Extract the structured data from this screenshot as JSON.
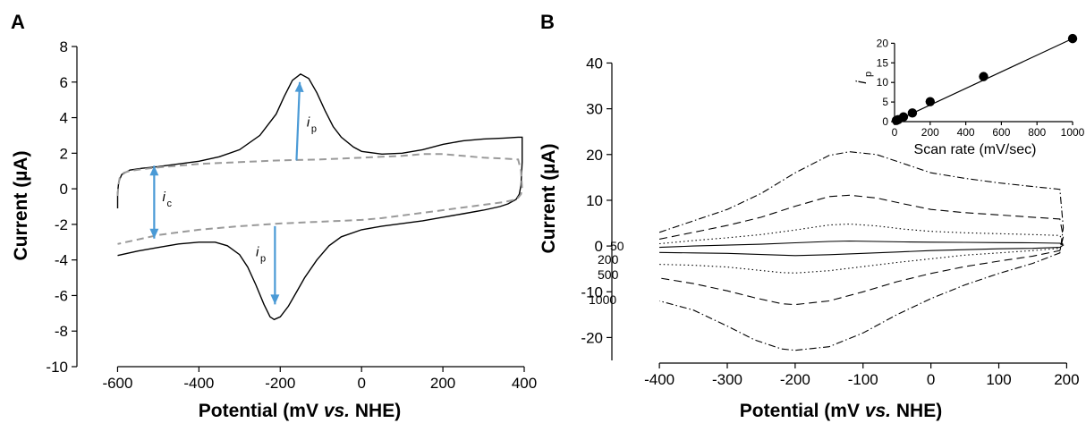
{
  "panels": {
    "a_letter": "A",
    "b_letter": "B"
  },
  "colors": {
    "cv_trace": "#000000",
    "background_trace": "#9a9a9a",
    "arrow": "#4a9ad6"
  },
  "chart_data": [
    {
      "panel": "A",
      "type": "line",
      "xlabel": "Potential (mV vs. NHE)",
      "ylabel": "Current (µA)",
      "xlim": [
        -700,
        400
      ],
      "ylim": [
        -10,
        8
      ],
      "xticks": [
        -600,
        -400,
        -200,
        0,
        200,
        400
      ],
      "yticks": [
        -10,
        -8,
        -6,
        -4,
        -2,
        0,
        2,
        4,
        6,
        8
      ],
      "grid": false,
      "series": [
        {
          "style": "solid",
          "color": "#000000",
          "x": [
            -600,
            -600,
            -597,
            -590,
            -570,
            -540,
            -500,
            -450,
            -400,
            -350,
            -300,
            -250,
            -210,
            -190,
            -170,
            -150,
            -130,
            -110,
            -90,
            -70,
            -50,
            -20,
            0,
            50,
            100,
            150,
            200,
            250,
            300,
            350,
            385,
            395,
            395,
            392,
            388,
            380,
            360,
            340,
            300,
            250,
            200,
            150,
            100,
            50,
            0,
            -50,
            -80,
            -110,
            -140,
            -160,
            -180,
            -200,
            -215,
            -225,
            -240,
            -260,
            -280,
            -300,
            -330,
            -360,
            -400,
            -450,
            -500,
            -550,
            -600
          ],
          "y": [
            -1.1,
            -0.2,
            0.4,
            0.8,
            1.05,
            1.15,
            1.25,
            1.4,
            1.55,
            1.8,
            2.2,
            3.0,
            4.2,
            5.2,
            6.1,
            6.45,
            6.2,
            5.4,
            4.4,
            3.5,
            2.9,
            2.35,
            2.1,
            1.95,
            2.0,
            2.2,
            2.5,
            2.7,
            2.8,
            2.85,
            2.9,
            2.9,
            1.5,
            0.2,
            -0.3,
            -0.6,
            -0.85,
            -1.0,
            -1.2,
            -1.4,
            -1.6,
            -1.8,
            -1.95,
            -2.1,
            -2.3,
            -2.7,
            -3.2,
            -4.0,
            -5.0,
            -5.8,
            -6.6,
            -7.2,
            -7.35,
            -7.2,
            -6.5,
            -5.4,
            -4.4,
            -3.7,
            -3.2,
            -3.0,
            -3.0,
            -3.1,
            -3.3,
            -3.5,
            -3.75
          ]
        },
        {
          "style": "dashed",
          "color": "#9a9a9a",
          "x": [
            -600,
            -598,
            -595,
            -585,
            -570,
            -540,
            -500,
            -450,
            -400,
            -300,
            -200,
            -100,
            0,
            50,
            100,
            150,
            200,
            250,
            300,
            350,
            385,
            392,
            395,
            392,
            385,
            370,
            350,
            300,
            250,
            200,
            150,
            100,
            50,
            0,
            -50,
            -100,
            -200,
            -300,
            -400,
            -450,
            -500,
            -550,
            -600
          ],
          "y": [
            -0.4,
            0.2,
            0.6,
            0.9,
            1.0,
            1.1,
            1.2,
            1.3,
            1.4,
            1.5,
            1.6,
            1.65,
            1.75,
            1.8,
            1.85,
            1.95,
            1.95,
            1.85,
            1.75,
            1.7,
            1.65,
            1.0,
            0.0,
            -0.3,
            -0.5,
            -0.65,
            -0.75,
            -0.9,
            -1.05,
            -1.2,
            -1.35,
            -1.5,
            -1.65,
            -1.75,
            -1.8,
            -1.85,
            -1.95,
            -2.1,
            -2.3,
            -2.45,
            -2.6,
            -2.85,
            -3.1
          ]
        }
      ],
      "annotations": [
        {
          "label": "i",
          "subscript": "p",
          "x": -135,
          "y": 3.5
        },
        {
          "label": "i",
          "subscript": "c",
          "x": -490,
          "y": -0.7
        },
        {
          "label": "i",
          "subscript": "p",
          "x": -260,
          "y": -3.8
        }
      ],
      "arrows": [
        {
          "x1": -160,
          "y1": 1.6,
          "x2": -152,
          "y2": 6.0,
          "note": "double-headed"
        },
        {
          "x1": -510,
          "y1": 1.3,
          "x2": -510,
          "y2": -2.8,
          "note": "double-headed"
        },
        {
          "x1": -213,
          "y1": -2.1,
          "x2": -213,
          "y2": -6.5,
          "note": "single-headed"
        }
      ]
    },
    {
      "panel": "B",
      "type": "line",
      "xlabel": "Potential (mV vs. NHE)",
      "ylabel": "Current (µA)",
      "xlim": [
        -470,
        210
      ],
      "ylim": [
        -25,
        44
      ],
      "xticks": [
        -400,
        -300,
        -200,
        -100,
        0,
        100,
        200
      ],
      "yticks": [
        -20,
        -10,
        0,
        10,
        20,
        30,
        40
      ],
      "grid": false,
      "series": [
        {
          "name": "50",
          "style": "solid",
          "x": [
            -400,
            -350,
            -300,
            -250,
            -200,
            -150,
            -120,
            -80,
            -40,
            0,
            50,
            100,
            150,
            190,
            195,
            190,
            150,
            100,
            50,
            0,
            -50,
            -100,
            -150,
            -200,
            -220,
            -260,
            -300,
            -350,
            -400
          ],
          "y": [
            -0.3,
            0.0,
            0.2,
            0.4,
            0.7,
            1.0,
            1.1,
            1.0,
            0.9,
            0.85,
            0.8,
            0.75,
            0.7,
            0.6,
            0.2,
            -0.3,
            -0.5,
            -0.6,
            -0.8,
            -1.0,
            -1.3,
            -1.6,
            -1.9,
            -2.1,
            -2.0,
            -1.8,
            -1.6,
            -1.5,
            -1.4
          ]
        },
        {
          "name": "200",
          "style": "dotted",
          "x": [
            -400,
            -350,
            -300,
            -250,
            -200,
            -150,
            -120,
            -80,
            -40,
            0,
            50,
            100,
            150,
            190,
            195,
            190,
            150,
            100,
            50,
            0,
            -50,
            -100,
            -150,
            -200,
            -220,
            -260,
            -300,
            -350,
            -400
          ],
          "y": [
            0.5,
            1.2,
            1.8,
            2.5,
            3.5,
            4.6,
            4.8,
            4.4,
            3.7,
            3.2,
            2.9,
            2.7,
            2.5,
            2.3,
            0.8,
            -0.5,
            -1.0,
            -1.5,
            -2.0,
            -2.8,
            -3.6,
            -4.5,
            -5.4,
            -5.9,
            -5.8,
            -5.2,
            -4.6,
            -4.2,
            -4.0
          ]
        },
        {
          "name": "500",
          "style": "dashed",
          "x": [
            -400,
            -350,
            -300,
            -250,
            -200,
            -150,
            -120,
            -80,
            -40,
            0,
            50,
            100,
            150,
            190,
            195,
            190,
            150,
            100,
            50,
            0,
            -50,
            -100,
            -150,
            -200,
            -220,
            -260,
            -300,
            -350,
            -400
          ],
          "y": [
            1.5,
            3.0,
            4.5,
            6.3,
            8.7,
            10.8,
            11.1,
            10.5,
            9.2,
            8.0,
            7.3,
            6.8,
            6.3,
            5.9,
            2.0,
            -1.0,
            -2.2,
            -3.3,
            -4.5,
            -6.0,
            -7.8,
            -10.0,
            -12.0,
            -12.8,
            -12.6,
            -11.3,
            -9.8,
            -8.2,
            -7.0
          ]
        },
        {
          "name": "1000",
          "style": "dash-dot",
          "x": [
            -400,
            -350,
            -300,
            -250,
            -200,
            -150,
            -120,
            -80,
            -40,
            0,
            50,
            100,
            150,
            190,
            195,
            190,
            150,
            100,
            50,
            0,
            -50,
            -100,
            -150,
            -200,
            -220,
            -260,
            -300,
            -350,
            -400
          ],
          "y": [
            3.0,
            5.5,
            8.0,
            11.5,
            16.0,
            19.8,
            20.6,
            20.0,
            18.0,
            16.0,
            14.8,
            13.8,
            13.0,
            12.4,
            4.0,
            -1.5,
            -3.8,
            -6.0,
            -8.5,
            -11.5,
            -15.0,
            -19.0,
            -22.0,
            -22.8,
            -22.5,
            -20.5,
            -17.5,
            -14.0,
            -12.0
          ]
        }
      ],
      "series_labels": [
        "50",
        "200",
        "500",
        "1000"
      ]
    },
    {
      "panel": "B-inset",
      "type": "scatter",
      "xlabel": "Scan rate (mV/sec)",
      "ylabel": "i",
      "ylabel_subscript": "p",
      "xlim": [
        0,
        1020
      ],
      "ylim": [
        0,
        21
      ],
      "xticks": [
        0,
        200,
        400,
        600,
        800,
        1000
      ],
      "yticks": [
        0,
        5,
        10,
        15,
        20
      ],
      "points": {
        "x": [
          10,
          20,
          50,
          100,
          200,
          500,
          1000
        ],
        "y": [
          0.3,
          0.5,
          1.2,
          2.2,
          5.1,
          11.5,
          21.2
        ]
      },
      "fit_line": {
        "x": [
          0,
          1000
        ],
        "y": [
          0,
          21.2
        ]
      }
    }
  ]
}
